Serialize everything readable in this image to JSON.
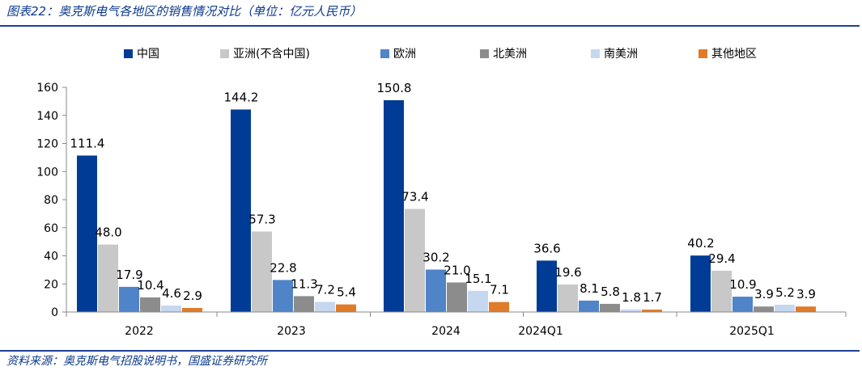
{
  "title": "图表22：奥克斯电气各地区的销售情况对比（单位：亿元人民币）",
  "source": "资料来源：奥克斯电气招股说明书，国盛证券研究所",
  "chart_data": {
    "type": "bar",
    "title": "",
    "xlabel": "",
    "ylabel": "",
    "ylim": [
      0,
      160
    ],
    "yticks": [
      0,
      20,
      40,
      60,
      80,
      100,
      120,
      140,
      160
    ],
    "categories": [
      "2022",
      "2023",
      "2024",
      "2024Q1",
      "2025Q1"
    ],
    "legend_position": "top",
    "series": [
      {
        "name": "中国",
        "color": "#003c96",
        "values": [
          111.4,
          144.2,
          150.8,
          36.6,
          40.2
        ],
        "labels": [
          "111.4",
          "144.2",
          "150.8",
          "36.6",
          "40.2"
        ]
      },
      {
        "name": "亚洲(不含中国)",
        "color": "#c8c8c8",
        "values": [
          48.0,
          57.3,
          73.4,
          19.6,
          29.4
        ],
        "labels": [
          "48.0",
          "57.3",
          "73.4",
          "19.6",
          "29.4"
        ]
      },
      {
        "name": "欧洲",
        "color": "#4f84c8",
        "values": [
          17.9,
          22.8,
          30.2,
          8.1,
          10.9
        ],
        "labels": [
          "17.9",
          "22.8",
          "30.2",
          "8.1",
          "10.9"
        ]
      },
      {
        "name": "北美洲",
        "color": "#8c8c8c",
        "values": [
          10.4,
          11.3,
          21.0,
          5.8,
          3.9
        ],
        "labels": [
          "10.4",
          "11.3",
          "21.0",
          "5.8",
          "3.9"
        ]
      },
      {
        "name": "南美洲",
        "color": "#c5d8f0",
        "values": [
          4.6,
          7.2,
          15.1,
          1.8,
          5.2
        ],
        "labels": [
          "4.6",
          "7.2",
          "15.1",
          "1.8",
          "5.2"
        ]
      },
      {
        "name": "其他地区",
        "color": "#e07b2a",
        "values": [
          2.9,
          5.4,
          7.1,
          1.7,
          3.9
        ],
        "labels": [
          "2.9",
          "5.4",
          "7.1",
          "1.7",
          "3.9"
        ]
      }
    ]
  }
}
